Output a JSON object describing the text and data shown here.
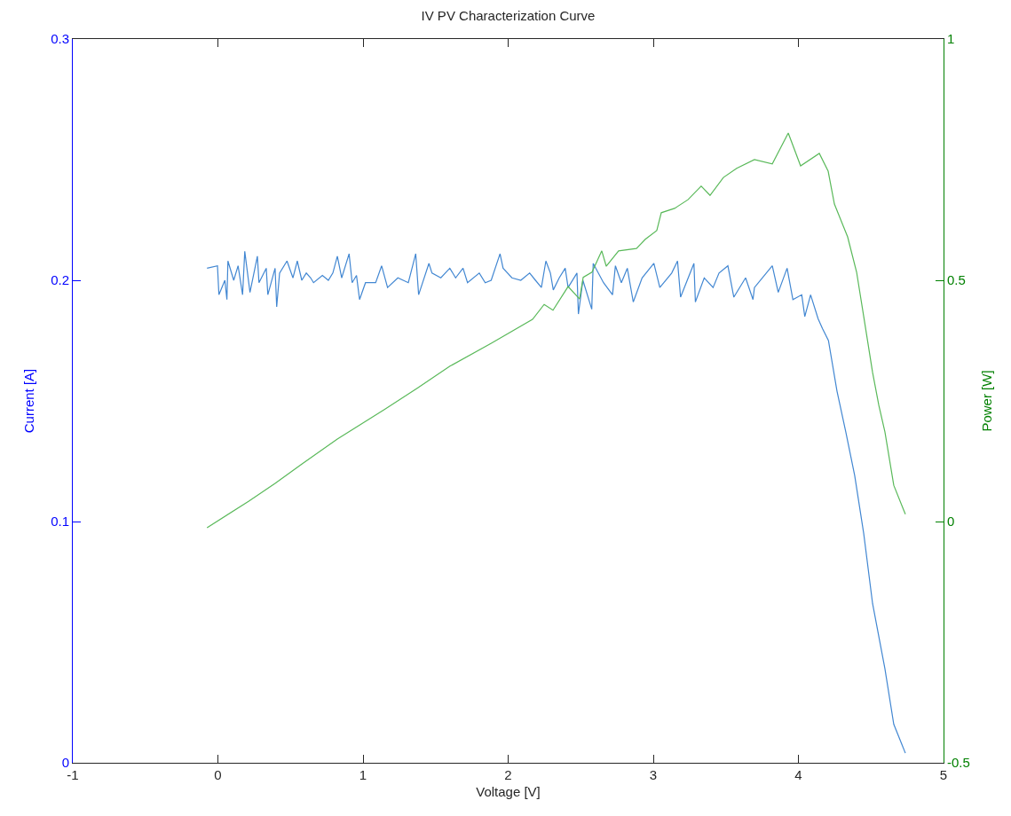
{
  "chart_data": {
    "type": "line",
    "title": "IV PV Characterization Curve",
    "xlabel": "Voltage [V]",
    "ylabel": "Current [A]",
    "y2label": "Power [W]",
    "xlim": [
      -1,
      5
    ],
    "xticks": [
      -1,
      0,
      1,
      2,
      3,
      4,
      5
    ],
    "ylim": [
      0,
      0.3
    ],
    "yticks": [
      0,
      0.1,
      0.2,
      0.3
    ],
    "y2lim": [
      -0.5,
      1
    ],
    "y2ticks": [
      -0.5,
      0,
      0.5,
      1
    ],
    "grid": false,
    "marker": "none",
    "line_style": "solid",
    "series": [
      {
        "color": "#4287d2",
        "x": [
          -0.075,
          -0.003,
          0.007,
          0.048,
          0.062,
          0.069,
          0.109,
          0.139,
          0.17,
          0.185,
          0.221,
          0.272,
          0.283,
          0.333,
          0.344,
          0.394,
          0.405,
          0.425,
          0.476,
          0.517,
          0.547,
          0.578,
          0.609,
          0.639,
          0.659,
          0.72,
          0.761,
          0.792,
          0.823,
          0.853,
          0.904,
          0.925,
          0.955,
          0.976,
          1.017,
          1.087,
          1.128,
          1.169,
          1.24,
          1.312,
          1.363,
          1.383,
          1.454,
          1.475,
          1.536,
          1.598,
          1.638,
          1.689,
          1.72,
          1.801,
          1.842,
          1.883,
          1.944,
          1.965,
          2.026,
          2.087,
          2.148,
          2.188,
          2.229,
          2.26,
          2.291,
          2.311,
          2.352,
          2.393,
          2.413,
          2.474,
          2.484,
          2.515,
          2.576,
          2.586,
          2.657,
          2.719,
          2.739,
          2.78,
          2.821,
          2.862,
          2.923,
          3.004,
          3.045,
          3.127,
          3.167,
          3.188,
          3.28,
          3.29,
          3.351,
          3.412,
          3.453,
          3.514,
          3.555,
          3.636,
          3.687,
          3.697,
          3.82,
          3.861,
          3.922,
          3.962,
          4.023,
          4.044,
          4.084,
          4.136,
          4.166,
          4.207,
          4.266,
          4.327,
          4.388,
          4.45,
          4.511,
          4.596,
          4.657,
          4.737
        ],
        "values": [
          0.205,
          0.206,
          0.194,
          0.2,
          0.192,
          0.208,
          0.2,
          0.206,
          0.194,
          0.212,
          0.195,
          0.21,
          0.199,
          0.205,
          0.194,
          0.205,
          0.189,
          0.203,
          0.208,
          0.201,
          0.208,
          0.2,
          0.203,
          0.201,
          0.199,
          0.202,
          0.2,
          0.203,
          0.21,
          0.201,
          0.211,
          0.199,
          0.202,
          0.192,
          0.199,
          0.199,
          0.206,
          0.197,
          0.201,
          0.199,
          0.211,
          0.194,
          0.207,
          0.203,
          0.201,
          0.205,
          0.201,
          0.205,
          0.199,
          0.203,
          0.199,
          0.2,
          0.211,
          0.205,
          0.201,
          0.2,
          0.203,
          0.2,
          0.197,
          0.208,
          0.203,
          0.196,
          0.201,
          0.205,
          0.197,
          0.203,
          0.186,
          0.2,
          0.188,
          0.207,
          0.199,
          0.194,
          0.206,
          0.199,
          0.205,
          0.191,
          0.201,
          0.207,
          0.197,
          0.203,
          0.208,
          0.193,
          0.207,
          0.191,
          0.201,
          0.197,
          0.203,
          0.206,
          0.193,
          0.201,
          0.192,
          0.197,
          0.206,
          0.195,
          0.205,
          0.192,
          0.194,
          0.185,
          0.194,
          0.184,
          0.18,
          0.175,
          0.154,
          0.137,
          0.119,
          0.095,
          0.066,
          0.039,
          0.016,
          0.004
        ]
      },
      {
        "color": "#5ab95a",
        "axis": "y2",
        "x": [
          -0.075,
          0.211,
          0.394,
          0.578,
          0.823,
          1.147,
          1.373,
          1.599,
          1.881,
          2.168,
          2.248,
          2.309,
          2.413,
          2.492,
          2.517,
          2.578,
          2.645,
          2.676,
          2.761,
          2.884,
          2.945,
          3.024,
          3.055,
          3.147,
          3.239,
          3.33,
          3.391,
          3.483,
          3.575,
          3.697,
          3.82,
          3.93,
          4.015,
          4.144,
          4.205,
          4.248,
          4.339,
          4.401,
          4.45,
          4.511,
          4.554,
          4.596,
          4.657,
          4.737
        ],
        "values": [
          -0.013,
          0.042,
          0.079,
          0.119,
          0.171,
          0.232,
          0.276,
          0.322,
          0.369,
          0.419,
          0.45,
          0.438,
          0.487,
          0.461,
          0.506,
          0.517,
          0.561,
          0.529,
          0.561,
          0.566,
          0.585,
          0.603,
          0.64,
          0.649,
          0.667,
          0.695,
          0.676,
          0.713,
          0.732,
          0.75,
          0.741,
          0.805,
          0.737,
          0.763,
          0.726,
          0.658,
          0.59,
          0.517,
          0.425,
          0.309,
          0.241,
          0.186,
          0.075,
          0.015
        ]
      }
    ]
  }
}
